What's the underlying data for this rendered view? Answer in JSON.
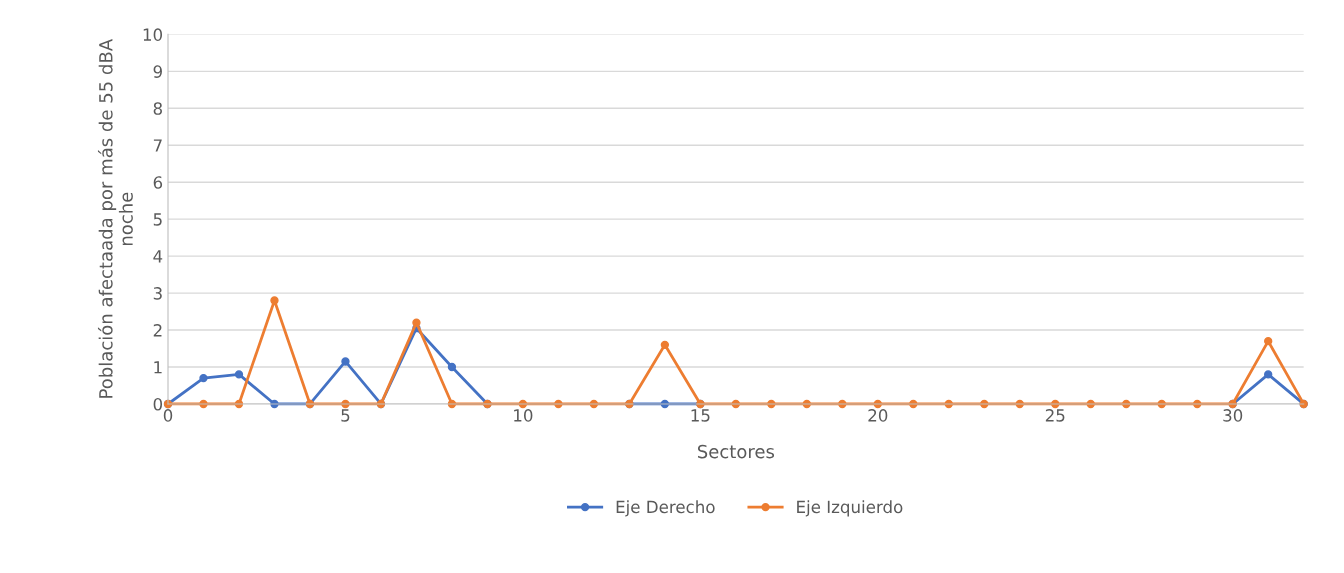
{
  "chart_data": {
    "type": "line",
    "xlabel": "Sectores",
    "ylabel": "Población afectaada por más de 55 dBA\nnoche",
    "x": [
      0,
      1,
      2,
      3,
      4,
      5,
      6,
      7,
      8,
      9,
      10,
      11,
      12,
      13,
      14,
      15,
      16,
      17,
      18,
      19,
      20,
      21,
      22,
      23,
      24,
      25,
      26,
      27,
      28,
      29,
      30,
      31,
      32
    ],
    "series": [
      {
        "name": "Eje Derecho",
        "color": "#4472c4",
        "values": [
          0,
          0.7,
          0.8,
          0,
          0,
          1.15,
          0,
          2.05,
          1.0,
          0,
          null,
          null,
          null,
          0,
          0,
          0,
          null,
          null,
          null,
          null,
          null,
          null,
          null,
          null,
          null,
          null,
          null,
          null,
          null,
          null,
          0,
          0.8,
          0
        ]
      },
      {
        "name": "Eje Izquierdo",
        "color": "#ed7d31",
        "values": [
          0,
          0,
          0,
          2.8,
          0,
          0,
          0,
          2.2,
          0,
          0,
          0,
          0,
          0,
          0,
          1.6,
          0,
          0,
          0,
          0,
          0,
          0,
          0,
          0,
          0,
          0,
          0,
          0,
          0,
          0,
          0,
          0,
          1.7,
          0
        ]
      }
    ],
    "xlim": [
      0,
      32
    ],
    "xticks": [
      0,
      5,
      10,
      15,
      20,
      25,
      30
    ],
    "ylim": [
      0,
      10
    ],
    "yticks": [
      0,
      1,
      2,
      3,
      4,
      5,
      6,
      7,
      8,
      9,
      10
    ],
    "grid": "y",
    "legend": "bottom",
    "marker": "circle",
    "line_style": "solid"
  }
}
